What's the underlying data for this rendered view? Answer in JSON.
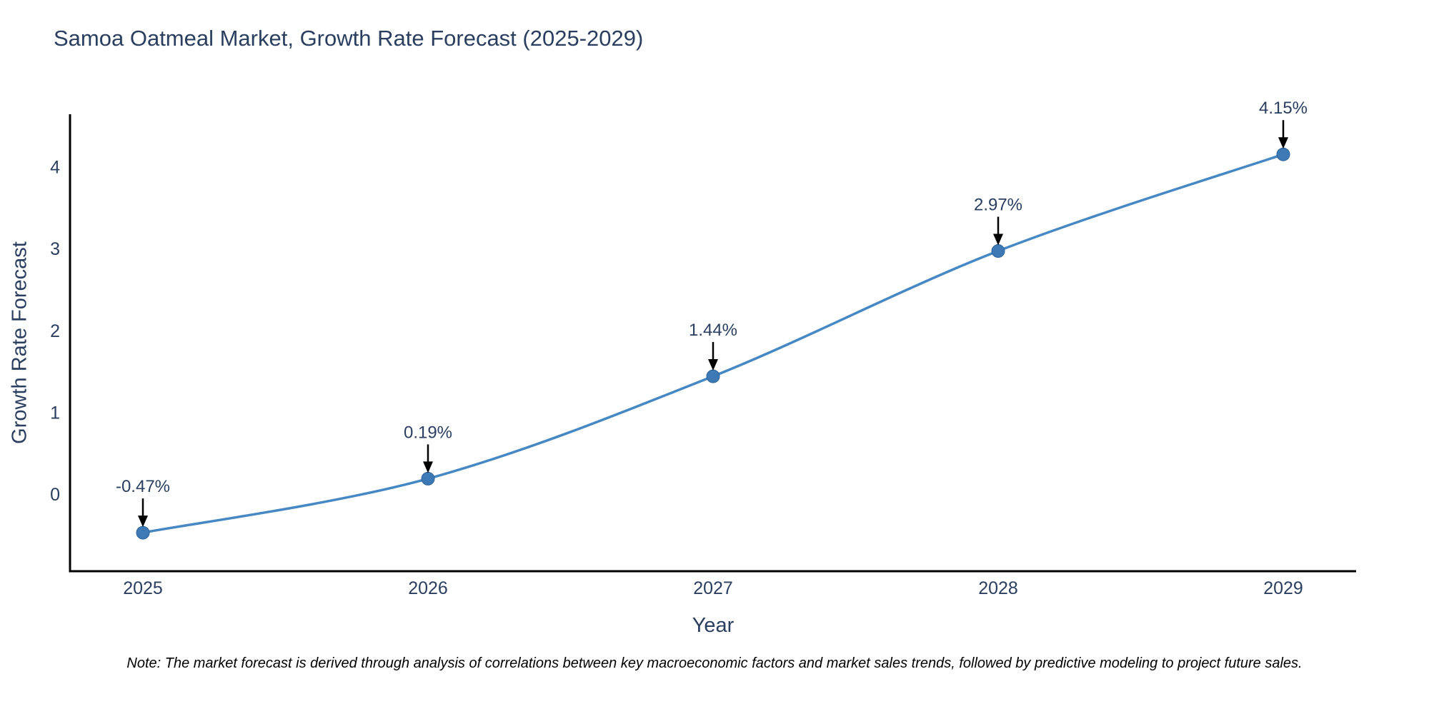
{
  "footnote": "Note: The market forecast is derived through analysis of correlations between key macroeconomic factors and market sales trends, followed by predictive modeling to project future sales.",
  "chart_data": {
    "type": "line",
    "title": "Samoa Oatmeal Market, Growth Rate Forecast (2025-2029)",
    "xlabel": "Year",
    "ylabel": "Growth Rate Forecast",
    "x": [
      2025,
      2026,
      2027,
      2028,
      2029
    ],
    "x_tick_labels": [
      "2025",
      "2026",
      "2027",
      "2028",
      "2029"
    ],
    "series": [
      {
        "name": "Growth Rate Forecast",
        "values": [
          -0.47,
          0.19,
          1.44,
          2.97,
          4.15
        ]
      }
    ],
    "point_labels": [
      "-0.47%",
      "0.19%",
      "1.44%",
      "2.97%",
      "4.15%"
    ],
    "yticks": [
      0,
      1,
      2,
      3,
      4
    ],
    "ytick_labels": [
      "0",
      "1",
      "2",
      "3",
      "4"
    ],
    "ylim": [
      -0.94,
      4.64
    ],
    "grid": false,
    "legend": false,
    "line_shape": "spline",
    "annotations_have_arrows": true,
    "colors": {
      "line": "#4688c3",
      "marker": "#3d7ab5",
      "marker_edge": "#2f6399",
      "axis": "#000000",
      "text": "#2a3f5f",
      "annotation_text": "#2a3f5f",
      "annotation_arrow": "#000000",
      "note_text": "#000000",
      "background": "#ffffff"
    }
  }
}
